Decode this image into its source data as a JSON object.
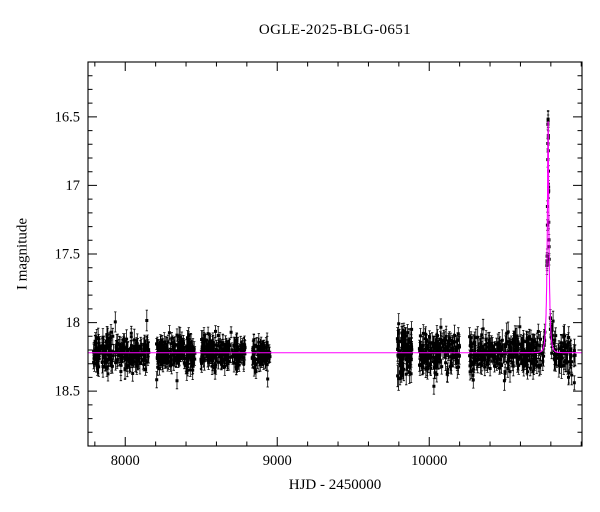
{
  "chart_data": {
    "type": "scatter",
    "title": "OGLE-2025-BLG-0651",
    "xlabel": "HJD - 2450000",
    "ylabel": "I magnitude",
    "xlim": [
      7755,
      11005
    ],
    "ylim": [
      16.1,
      18.9
    ],
    "y_inverted": true,
    "grid": false,
    "legend": null,
    "x_major_ticks": [
      {
        "value": 8000,
        "label": "8000"
      },
      {
        "value": 9000,
        "label": "9000"
      },
      {
        "value": 10000,
        "label": "10000"
      }
    ],
    "x_minor_step": 200,
    "y_major_ticks": [
      {
        "value": 16.5,
        "label": "16.5"
      },
      {
        "value": 17.0,
        "label": "17"
      },
      {
        "value": 17.5,
        "label": "17.5"
      },
      {
        "value": 18.0,
        "label": "18"
      },
      {
        "value": 18.5,
        "label": "18.5"
      }
    ],
    "y_minor_step": 0.1,
    "point_color": "#000000",
    "model_color": "#ff00ff",
    "baseline_mag": 18.22,
    "microlensing_model": {
      "type": "paczynski",
      "t0": 10782,
      "tE": 13,
      "u0": 0.215,
      "baseline_mag": 18.22,
      "peak_mag": 16.53
    },
    "seasons": [
      {
        "x0": 7790,
        "x1": 8155,
        "n": 210,
        "sigma": 0.065,
        "err": 0.06
      },
      {
        "x0": 8205,
        "x1": 8460,
        "n": 185,
        "sigma": 0.06,
        "err": 0.055
      },
      {
        "x0": 8495,
        "x1": 8790,
        "n": 185,
        "sigma": 0.06,
        "err": 0.055
      },
      {
        "x0": 8835,
        "x1": 8955,
        "n": 70,
        "sigma": 0.06,
        "err": 0.055
      },
      {
        "x0": 9790,
        "x1": 9885,
        "n": 85,
        "sigma": 0.095,
        "err": 0.07
      },
      {
        "x0": 9935,
        "x1": 10200,
        "n": 160,
        "sigma": 0.07,
        "err": 0.06
      },
      {
        "x0": 10265,
        "x1": 10560,
        "n": 160,
        "sigma": 0.065,
        "err": 0.06
      },
      {
        "x0": 10565,
        "x1": 10762,
        "n": 110,
        "sigma": 0.07,
        "err": 0.06
      },
      {
        "x0": 10774,
        "x1": 10791,
        "n": 24,
        "sigma": 0.035,
        "err": 0.05
      },
      {
        "x0": 10791,
        "x1": 10806,
        "n": 8,
        "sigma": 0.04,
        "err": 0.05
      },
      {
        "x0": 10806,
        "x1": 10960,
        "n": 60,
        "sigma": 0.08,
        "err": 0.07
      }
    ],
    "highlight_point": {
      "x": 10782,
      "mag": 16.53,
      "err": 0.07
    }
  }
}
